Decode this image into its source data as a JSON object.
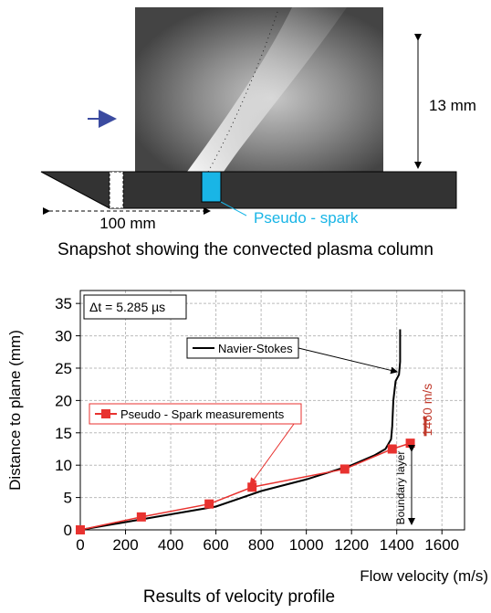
{
  "diagram": {
    "height_label": "13 mm",
    "length_label": "100 mm",
    "spark_label": "Pseudo - spark",
    "caption": "Snapshot showing the convected plasma column"
  },
  "chart_data": {
    "type": "line",
    "x_label": "Flow velocity (m/s)",
    "y_label": "Distance to plane (mm)",
    "caption": "Results of velocity profile",
    "annotations": [
      "Δt = 5.285 µs",
      "1460 m/s",
      "Boundary layer"
    ],
    "xlim": [
      0,
      1700
    ],
    "ylim": [
      0,
      37
    ],
    "xticks": [
      0,
      200,
      400,
      600,
      800,
      1000,
      1200,
      1400,
      1600
    ],
    "yticks": [
      0,
      5,
      10,
      15,
      20,
      25,
      30,
      35
    ],
    "grid": true,
    "series": [
      {
        "name": "Navier-Stokes",
        "color": "#000000",
        "marker": "none",
        "x": [
          0,
          300,
          600,
          800,
          1000,
          1200,
          1300,
          1350,
          1375,
          1380,
          1385,
          1395,
          1410,
          1415,
          1415
        ],
        "values": [
          0,
          1.8,
          3.6,
          6,
          7.8,
          10,
          11.5,
          12.5,
          14,
          16,
          20,
          23,
          24,
          26,
          31
        ]
      },
      {
        "name": "Pseudo - Spark measurements",
        "color": "#e8322f",
        "marker": "square",
        "x": [
          0,
          270,
          570,
          760,
          1170,
          1380,
          1460
        ],
        "values": [
          0,
          2,
          4,
          6.6,
          9.4,
          12.5,
          13.4
        ]
      }
    ]
  }
}
